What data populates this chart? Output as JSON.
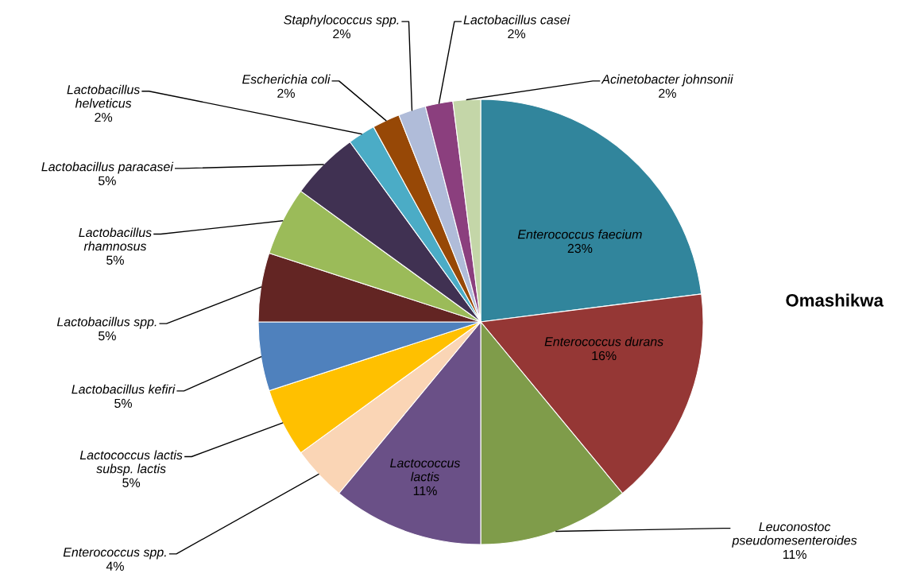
{
  "chart_data": {
    "type": "pie",
    "title": "Omashikwa",
    "categories": [
      "Enterococcus faecium",
      "Enterococcus durans",
      "Leuconostoc\npseudomesenteroides",
      "Lactococcus\nlactis",
      "Enterococcus spp.",
      "Lactococcus lactis\nsubsp. lactis",
      "Lactobacillus kefiri",
      "Lactobacillus spp.",
      "Lactobacillus\nrhamnosus",
      "Lactobacillus paracasei",
      "Lactobacillus\nhelveticus",
      "Escherichia coli",
      "Staphylococcus spp.",
      "Lactobacillus casei",
      "Acinetobacter johnsonii"
    ],
    "values": [
      23,
      16,
      11,
      11,
      4,
      5,
      5,
      5,
      5,
      5,
      2,
      2,
      2,
      2,
      2
    ],
    "value_labels": [
      "23%",
      "16%",
      "11%",
      "11%",
      "4%",
      "5%",
      "5%",
      "5%",
      "5%",
      "5%",
      "2%",
      "2%",
      "2%",
      "2%",
      "2%"
    ],
    "colors": [
      "#31859c",
      "#953735",
      "#7f9c4a",
      "#6a5087",
      "#fad5b5",
      "#ffc000",
      "#4f81bd",
      "#632523",
      "#9bbb59",
      "#403152",
      "#4bacc6",
      "#974806",
      "#b0bcd9",
      "#8b3f7e",
      "#c4d6a8"
    ]
  }
}
